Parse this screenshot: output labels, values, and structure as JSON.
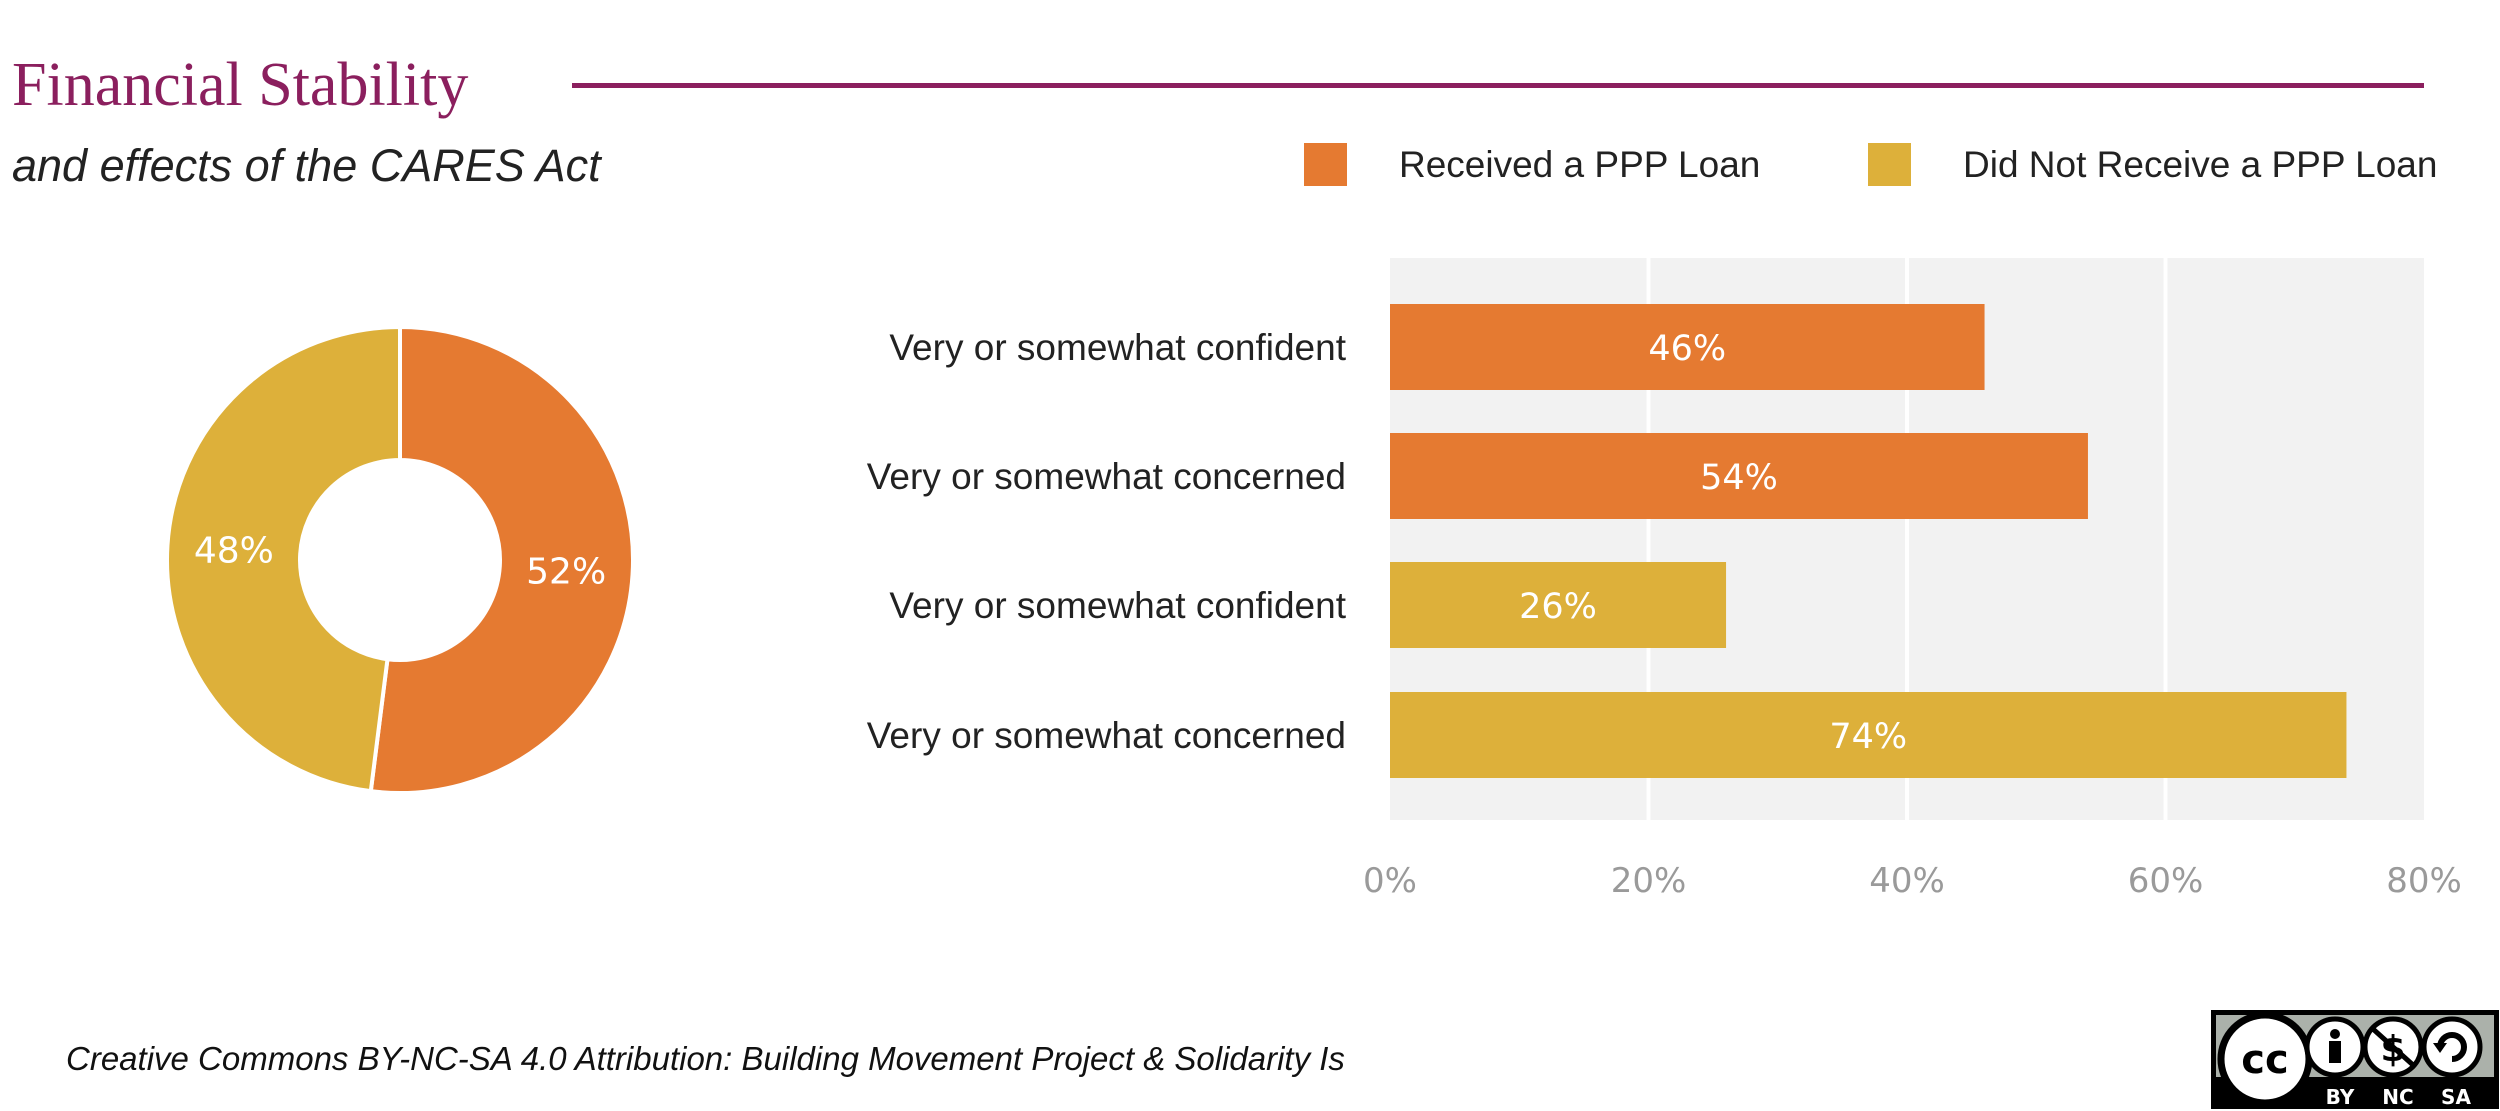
{
  "title": "Financial Stability",
  "subtitle": "and effects of the CARES Act",
  "legend": [
    {
      "label": "Received a PPP Loan",
      "color": "#e57a31"
    },
    {
      "label": "Did Not Receive a PPP Loan",
      "color": "#ddb03a"
    }
  ],
  "footer": "Creative Commons BY-NC-SA 4.0 Attribution: Building Movement Project & Solidarity Is",
  "license_badge": {
    "letters": [
      "BY",
      "NC",
      "SA"
    ]
  },
  "chart_data": [
    {
      "type": "pie",
      "donut": true,
      "slices": [
        {
          "label": "52%",
          "value": 52,
          "color": "#e57a31"
        },
        {
          "label": "48%",
          "value": 48,
          "color": "#ddb03a"
        }
      ]
    },
    {
      "type": "bar",
      "orientation": "horizontal",
      "categories": [
        "Very or somewhat confident",
        "Very or somewhat concerned",
        "Very or somewhat confident",
        "Very or somewhat concerned"
      ],
      "values": [
        46,
        54,
        26,
        74
      ],
      "value_labels": [
        "46%",
        "54%",
        "26%",
        "74%"
      ],
      "colors": [
        "#e57a31",
        "#e57a31",
        "#ddb03a",
        "#ddb03a"
      ],
      "xlim": [
        0,
        80
      ],
      "xticks": [
        0,
        20,
        40,
        60,
        80
      ],
      "xtick_labels": [
        "0%",
        "20%",
        "40%",
        "60%",
        "80%"
      ],
      "grid": true,
      "legend_position": "top-right"
    }
  ]
}
